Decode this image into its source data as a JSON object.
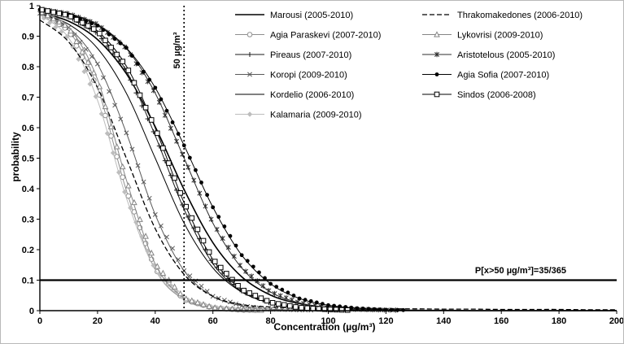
{
  "chart_data": {
    "type": "line",
    "title": "",
    "xlabel": "Concentration (µg/m³)",
    "ylabel": "probability",
    "xlim": [
      0,
      200
    ],
    "ylim": [
      0,
      1
    ],
    "x_ticks": [
      0,
      20,
      40,
      60,
      80,
      100,
      120,
      140,
      160,
      180,
      200
    ],
    "y_ticks": [
      0,
      0.1,
      0.2,
      0.3,
      0.4,
      0.5,
      0.6,
      0.7,
      0.8,
      0.9,
      1
    ],
    "grid": false,
    "legend_position": "top-right",
    "x": [
      0,
      10,
      20,
      30,
      40,
      50,
      60,
      70,
      80,
      90,
      100,
      110,
      120,
      130,
      140,
      150,
      160,
      170,
      180,
      190,
      200
    ],
    "series": [
      {
        "name": "Marousi (2005-2010)",
        "color": "#000000",
        "marker": "none",
        "dash": "solid",
        "width": 1.6,
        "values": [
          0.977,
          0.949,
          0.889,
          0.777,
          0.603,
          0.397,
          0.223,
          0.111,
          0.051,
          0.023,
          0.01,
          0.004,
          0.002,
          0.001,
          0.001,
          0,
          0,
          0,
          0,
          0,
          0
        ]
      },
      {
        "name": "Agia Paraskevi (2007-2010)",
        "color": "#8f8f8f",
        "marker": "circle-open",
        "dash": "solid",
        "width": 1,
        "values": [
          0.979,
          0.919,
          0.731,
          0.394,
          0.135,
          0.036,
          0.009,
          0.002,
          0.001,
          0,
          0,
          0,
          0,
          0,
          0,
          0,
          0,
          0,
          0,
          0,
          0
        ]
      },
      {
        "name": "Pireaus (2007-2010)",
        "color": "#1a1a1a",
        "marker": "plus",
        "dash": "solid",
        "width": 1,
        "values": [
          0.987,
          0.964,
          0.909,
          0.786,
          0.574,
          0.332,
          0.154,
          0.063,
          0.024,
          0.009,
          0.003,
          0.001,
          0,
          0,
          0,
          0,
          0,
          0,
          0,
          0,
          0
        ]
      },
      {
        "name": "Koropi (2009-2010)",
        "color": "#5a5a5a",
        "marker": "x",
        "dash": "solid",
        "width": 1,
        "values": [
          0.975,
          0.928,
          0.809,
          0.583,
          0.315,
          0.131,
          0.047,
          0.016,
          0.005,
          0.002,
          0.001,
          0,
          0,
          0,
          0,
          0,
          0,
          0,
          0,
          0,
          0
        ]
      },
      {
        "name": "Kordelio (2006-2010)",
        "color": "#000000",
        "marker": "none",
        "dash": "solid",
        "width": 1,
        "values": [
          0.974,
          0.939,
          0.86,
          0.713,
          0.5,
          0.287,
          0.14,
          0.061,
          0.026,
          0.01,
          0.004,
          0.002,
          0.001,
          0,
          0,
          0,
          0,
          0,
          0,
          0,
          0
        ]
      },
      {
        "name": "Kalamaria (2009-2010)",
        "color": "#bdbdbd",
        "marker": "diamond-filled",
        "dash": "solid",
        "width": 1,
        "values": [
          0.97,
          0.894,
          0.69,
          0.37,
          0.134,
          0.039,
          0.011,
          0.003,
          0.001,
          0,
          0,
          0,
          0,
          0,
          0,
          0,
          0,
          0,
          0,
          0,
          0
        ]
      },
      {
        "name": "Thrakomakedones (2006-2010)",
        "color": "#000000",
        "marker": "none",
        "dash": "dashed",
        "width": 1.3,
        "values": [
          0.953,
          0.881,
          0.731,
          0.5,
          0.269,
          0.119,
          0.047,
          0.02,
          0.012,
          0.009,
          0.008,
          0.007,
          0.006,
          0.006,
          0.005,
          0.005,
          0.004,
          0.004,
          0.004,
          0.003,
          0.003
        ]
      },
      {
        "name": "Lykovrisi (2009-2010)",
        "color": "#858585",
        "marker": "triangle-open",
        "dash": "solid",
        "width": 1,
        "values": [
          0.982,
          0.929,
          0.758,
          0.429,
          0.153,
          0.041,
          0.01,
          0.003,
          0.001,
          0,
          0,
          0,
          0,
          0,
          0,
          0,
          0,
          0,
          0,
          0,
          0
        ]
      },
      {
        "name": "Aristotelous (2005-2010)",
        "color": "#2e2e2e",
        "marker": "asterisk",
        "dash": "solid",
        "width": 1,
        "values": [
          0.989,
          0.974,
          0.939,
          0.86,
          0.713,
          0.5,
          0.287,
          0.14,
          0.061,
          0.026,
          0.01,
          0.004,
          0.002,
          0.001,
          0,
          0,
          0,
          0,
          0,
          0,
          0
        ]
      },
      {
        "name": "Agia Sofia (2007-2010)",
        "color": "#000000",
        "marker": "circle-filled",
        "dash": "solid",
        "width": 1,
        "values": [
          0.987,
          0.971,
          0.935,
          0.862,
          0.731,
          0.542,
          0.339,
          0.182,
          0.088,
          0.04,
          0.018,
          0.008,
          0.003,
          0.001,
          0,
          0,
          0,
          0,
          0,
          0,
          0
        ]
      },
      {
        "name": "Sindos (2006-2008)",
        "color": "#000000",
        "marker": "square-open",
        "dash": "solid",
        "width": 1,
        "values": [
          0.988,
          0.968,
          0.917,
          0.802,
          0.599,
          0.354,
          0.168,
          0.069,
          0.027,
          0.01,
          0.004,
          0.001,
          0,
          0,
          0,
          0,
          0,
          0,
          0,
          0,
          0
        ]
      }
    ],
    "annotations": {
      "vline_x": 50,
      "vline_label": "50 µg/m³",
      "hline_y": 0.1,
      "hline_label": "P[x>50 µg/m³]=35/365"
    }
  }
}
